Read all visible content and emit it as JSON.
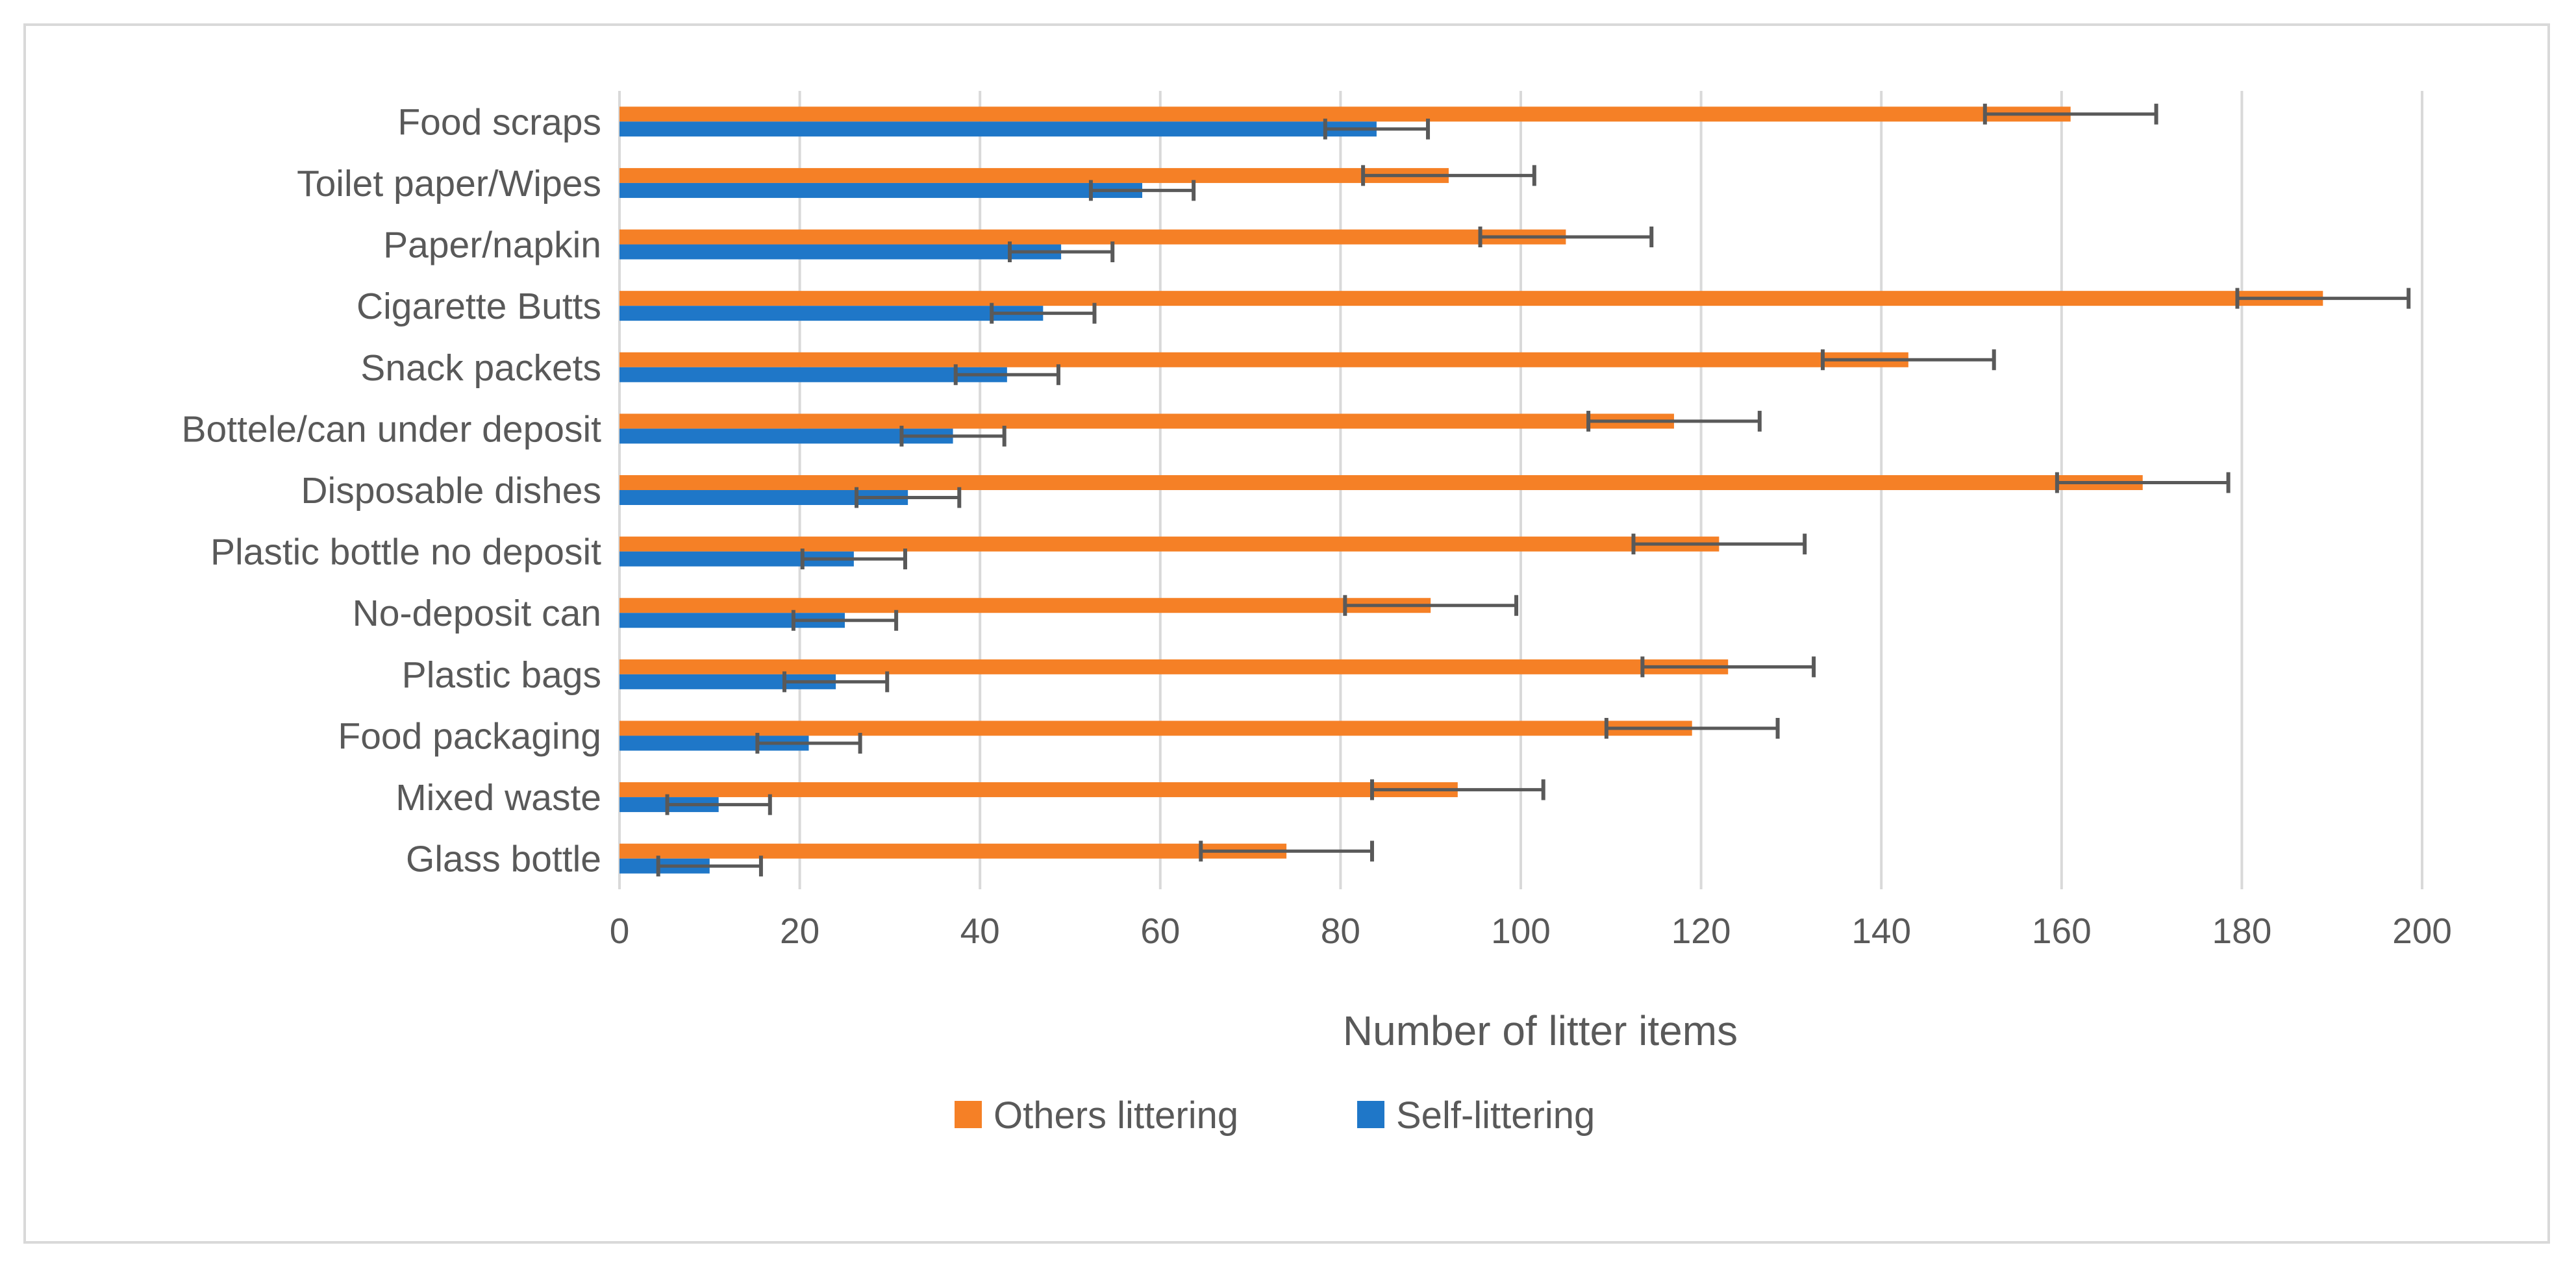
{
  "chart_data": {
    "type": "bar",
    "orientation": "horizontal",
    "categories": [
      "Food scraps",
      "Toilet paper/Wipes",
      "Paper/napkin",
      "Cigarette Butts",
      "Snack packets",
      "Bottele/can under deposit",
      "Disposable dishes",
      "Plastic bottle no deposit",
      "No-deposit can",
      "Plastic bags",
      "Food packaging",
      "Mixed waste",
      "Glass bottle"
    ],
    "series": [
      {
        "name": "Others littering",
        "color": "#f58026",
        "values": [
          161,
          92,
          105,
          189,
          143,
          117,
          169,
          122,
          90,
          123,
          119,
          93,
          74
        ],
        "error": 9.5
      },
      {
        "name": "Self-littering",
        "color": "#1f77c8",
        "values": [
          84,
          58,
          49,
          47,
          43,
          37,
          32,
          26,
          25,
          24,
          21,
          11,
          10
        ],
        "error": 5.7
      }
    ],
    "xlabel": "Number of litter items",
    "ylabel": "",
    "xlim": [
      0,
      200
    ],
    "xticks": [
      "0",
      "20",
      "40",
      "60",
      "80",
      "100",
      "120",
      "140",
      "160",
      "180",
      "200"
    ],
    "grid": "vertical",
    "legend": "bottom",
    "error_bar_color": "#595959",
    "grid_color": "#d9d9d9"
  }
}
